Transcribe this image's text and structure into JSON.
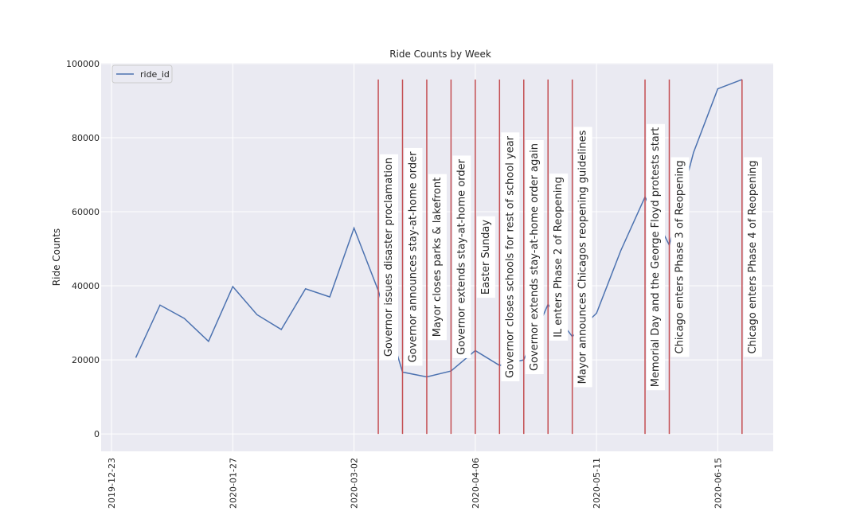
{
  "chart_data": {
    "type": "line",
    "title": "Ride Counts by Week",
    "y_label": "Ride Counts",
    "x": [
      "2019-12-30",
      "2020-01-06",
      "2020-01-13",
      "2020-01-20",
      "2020-01-27",
      "2020-02-03",
      "2020-02-10",
      "2020-02-17",
      "2020-02-24",
      "2020-03-02",
      "2020-03-09",
      "2020-03-16",
      "2020-03-23",
      "2020-03-30",
      "2020-04-06",
      "2020-04-13",
      "2020-04-20",
      "2020-04-27",
      "2020-05-04",
      "2020-05-11",
      "2020-05-18",
      "2020-05-25",
      "2020-06-01",
      "2020-06-08",
      "2020-06-15",
      "2020-06-22"
    ],
    "series": [
      {
        "name": "ride_id",
        "color": "#4c72b0",
        "values": [
          20600,
          34800,
          31200,
          25000,
          39800,
          32200,
          28200,
          39200,
          37000,
          55600,
          38700,
          16700,
          15400,
          17000,
          22500,
          18500,
          20000,
          35000,
          26300,
          32600,
          49500,
          64000,
          51000,
          76000,
          93200,
          95700
        ]
      }
    ],
    "events": [
      {
        "x": "2020-03-09",
        "label": "Governor issues disaster proclamation"
      },
      {
        "x": "2020-03-16",
        "label": "Governor announces stay-at-home order"
      },
      {
        "x": "2020-03-23",
        "label": "Mayor closes parks & lakefront"
      },
      {
        "x": "2020-03-30",
        "label": "Governor extends stay-at-home order"
      },
      {
        "x": "2020-04-06",
        "label": "Easter Sunday"
      },
      {
        "x": "2020-04-13",
        "label": "Governor closes schools for rest of school year"
      },
      {
        "x": "2020-04-20",
        "label": "Governor extends stay-at-home order again"
      },
      {
        "x": "2020-04-27",
        "label": "IL enters Phase 2 of Reopening"
      },
      {
        "x": "2020-05-04",
        "label": "Mayor announces Chicagos reopening guidelines"
      },
      {
        "x": "2020-05-25",
        "label": "Memorial Day and the George Floyd protests start"
      },
      {
        "x": "2020-06-01",
        "label": "Chicago enters Phase 3 of Reopening"
      },
      {
        "x": "2020-06-22",
        "label": "Chicago enters Phase 4 of Reopening"
      }
    ],
    "event_color": "#c44e52",
    "xlim": [
      "2019-12-20",
      "2020-07-01"
    ],
    "xticks": [
      "2019-12-23",
      "2020-01-27",
      "2020-03-02",
      "2020-04-06",
      "2020-05-11",
      "2020-06-15"
    ],
    "ylim": [
      -4700,
      100200
    ],
    "yticks": [
      0,
      20000,
      40000,
      60000,
      80000,
      100000
    ],
    "grid": true,
    "legend": "upper left"
  }
}
